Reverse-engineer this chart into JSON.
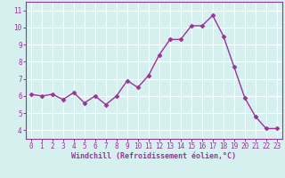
{
  "x": [
    0,
    1,
    2,
    3,
    4,
    5,
    6,
    7,
    8,
    9,
    10,
    11,
    12,
    13,
    14,
    15,
    16,
    17,
    18,
    19,
    20,
    21,
    22,
    23
  ],
  "y": [
    6.1,
    6.0,
    6.1,
    5.8,
    6.2,
    5.6,
    6.0,
    5.5,
    6.0,
    6.9,
    6.5,
    7.2,
    8.4,
    9.3,
    9.3,
    10.1,
    10.1,
    10.7,
    9.5,
    7.7,
    5.9,
    4.8,
    4.1,
    4.1
  ],
  "line_color": "#993399",
  "marker": "D",
  "marker_size": 2.5,
  "bg_color": "#d6f0f0",
  "grid_color": "#ffffff",
  "xlabel": "Windchill (Refroidissement éolien,°C)",
  "xlabel_color": "#993399",
  "tick_color": "#993399",
  "axis_color": "#993399",
  "ylim": [
    3.5,
    11.5
  ],
  "xlim": [
    -0.5,
    23.5
  ],
  "yticks": [
    4,
    5,
    6,
    7,
    8,
    9,
    10,
    11
  ],
  "xticks": [
    0,
    1,
    2,
    3,
    4,
    5,
    6,
    7,
    8,
    9,
    10,
    11,
    12,
    13,
    14,
    15,
    16,
    17,
    18,
    19,
    20,
    21,
    22,
    23
  ],
  "tick_fontsize": 5.5,
  "xlabel_fontsize": 6.0,
  "linewidth": 1.0
}
